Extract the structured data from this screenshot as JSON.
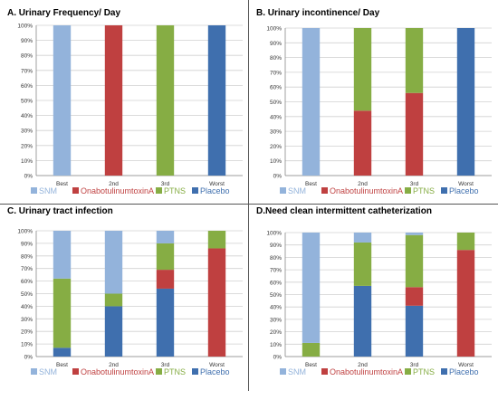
{
  "colors": {
    "SNM": "#93b3db",
    "OnabotulinumtoxinA": "#bf4040",
    "PTNS": "#86ad44",
    "Placebo": "#3f6fae"
  },
  "chart_data": [
    {
      "type": "bar",
      "stacked": true,
      "title": "A. Urinary Frequency/ Day",
      "categories": [
        "Best",
        "2nd",
        "3rd",
        "Worst"
      ],
      "ylim": [
        0,
        100
      ],
      "yticks": [
        "0%",
        "10%",
        "20%",
        "30%",
        "40%",
        "50%",
        "60%",
        "70%",
        "80%",
        "90%",
        "100%"
      ],
      "series": [
        {
          "name": "Placebo",
          "key": "Placebo",
          "values": [
            0,
            0,
            0,
            100
          ]
        },
        {
          "name": "OnabotulinumtoxinA",
          "key": "OnabotulinumtoxinA",
          "values": [
            0,
            100,
            0,
            0
          ]
        },
        {
          "name": "PTNS",
          "key": "PTNS",
          "values": [
            0,
            0,
            100,
            0
          ]
        },
        {
          "name": "SNM",
          "key": "SNM",
          "values": [
            100,
            0,
            0,
            0
          ]
        }
      ],
      "legend": [
        {
          "name": "SNM",
          "key": "SNM"
        },
        {
          "name": "OnabotulinumtoxinA",
          "key": "OnabotulinumtoxinA"
        },
        {
          "name": "PTNS",
          "key": "PTNS"
        },
        {
          "name": "Placebo",
          "key": "Placebo"
        }
      ],
      "legend_position": "bottom"
    },
    {
      "type": "bar",
      "stacked": true,
      "title": "B. Urinary incontinence/ Day",
      "categories": [
        "Best",
        "2nd",
        "3rd",
        "Worst"
      ],
      "ylim": [
        0,
        100
      ],
      "yticks": [
        "0%",
        "10%",
        "20%",
        "30%",
        "40%",
        "50%",
        "60%",
        "70%",
        "80%",
        "90%",
        "100%"
      ],
      "series": [
        {
          "name": "Placebo",
          "key": "Placebo",
          "values": [
            0,
            0,
            0,
            100
          ]
        },
        {
          "name": "OnabotulinumtoxinA",
          "key": "OnabotulinumtoxinA",
          "values": [
            0,
            44,
            56,
            0
          ]
        },
        {
          "name": "PTNS",
          "key": "PTNS",
          "values": [
            0,
            56,
            44,
            0
          ]
        },
        {
          "name": "SNM",
          "key": "SNM",
          "values": [
            100,
            0,
            0,
            0
          ]
        }
      ],
      "legend": [
        {
          "name": "SNM",
          "key": "SNM"
        },
        {
          "name": "OnabotulinumtoxinA",
          "key": "OnabotulinumtoxinA"
        },
        {
          "name": "PTNS",
          "key": "PTNS"
        },
        {
          "name": "Placebo",
          "key": "Placebo"
        }
      ],
      "legend_position": "bottom"
    },
    {
      "type": "bar",
      "stacked": true,
      "title": "C. Urinary tract infection",
      "categories": [
        "Best",
        "2nd",
        "3rd",
        "Worst"
      ],
      "ylim": [
        0,
        100
      ],
      "yticks": [
        "0%",
        "10%",
        "20%",
        "30%",
        "40%",
        "50%",
        "60%",
        "70%",
        "80%",
        "90%",
        "100%"
      ],
      "series": [
        {
          "name": "Placebo",
          "key": "Placebo",
          "values": [
            7,
            40,
            54,
            0
          ]
        },
        {
          "name": "OnabotulinumtoxinA",
          "key": "OnabotulinumtoxinA",
          "values": [
            0,
            0,
            15,
            86
          ]
        },
        {
          "name": "PTNS",
          "key": "PTNS",
          "values": [
            55,
            10,
            21,
            14
          ]
        },
        {
          "name": "SNM",
          "key": "SNM",
          "values": [
            38,
            50,
            10,
            0
          ]
        }
      ],
      "legend": [
        {
          "name": "SNM",
          "key": "SNM"
        },
        {
          "name": "OnabotulinumtoxinA",
          "key": "OnabotulinumtoxinA"
        },
        {
          "name": "PTNS",
          "key": "PTNS"
        },
        {
          "name": "Placebo",
          "key": "Placebo"
        }
      ],
      "legend_position": "bottom"
    },
    {
      "type": "bar",
      "stacked": true,
      "title": "D.Need clean intermittent catheterization",
      "categories": [
        "Best",
        "2nd",
        "3rd",
        "Worst"
      ],
      "ylim": [
        0,
        100
      ],
      "yticks": [
        "0%",
        "10%",
        "20%",
        "30%",
        "40%",
        "50%",
        "60%",
        "70%",
        "80%",
        "90%",
        "100%"
      ],
      "series": [
        {
          "name": "Placebo",
          "key": "Placebo",
          "values": [
            0,
            57,
            41,
            0
          ]
        },
        {
          "name": "OnabotulinumtoxinA",
          "key": "OnabotulinumtoxinA",
          "values": [
            0,
            0,
            15,
            86
          ]
        },
        {
          "name": "PTNS",
          "key": "PTNS",
          "values": [
            11,
            35,
            42,
            14
          ]
        },
        {
          "name": "SNM",
          "key": "SNM",
          "values": [
            89,
            8,
            2,
            0
          ]
        }
      ],
      "legend": [
        {
          "name": "SNM",
          "key": "SNM"
        },
        {
          "name": "OnabotulinumtoxinA",
          "key": "OnabotulinumtoxinA"
        },
        {
          "name": "PTNS",
          "key": "PTNS"
        },
        {
          "name": "Placebo",
          "key": "Placebo"
        }
      ],
      "legend_position": "bottom"
    }
  ]
}
